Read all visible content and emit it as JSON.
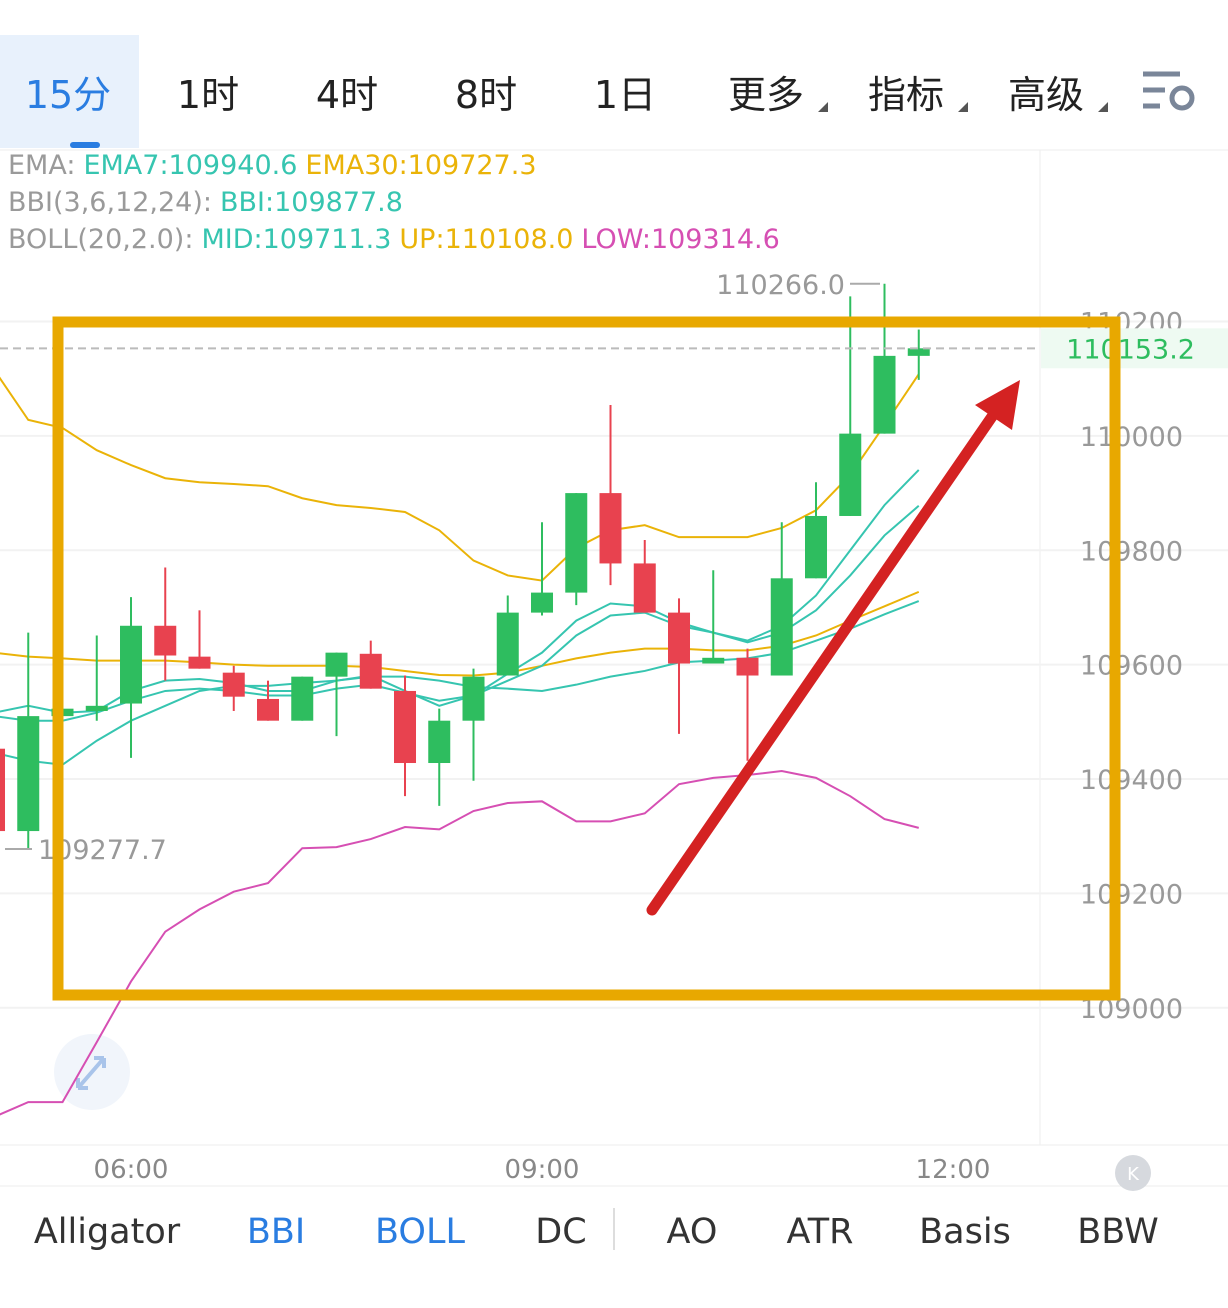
{
  "ui": {
    "tabs": [
      {
        "text": "15分",
        "active": true
      },
      {
        "text": "1时"
      },
      {
        "text": "4时"
      },
      {
        "text": "8时"
      },
      {
        "text": "1日"
      },
      {
        "text": "更多",
        "menu": true
      },
      {
        "text": "指标",
        "menu": true
      },
      {
        "text": "高级",
        "menu": true
      }
    ],
    "indicators": [
      [
        {
          "text": "EMA:",
          "color": "#9a9a9a"
        },
        {
          "text": "EMA7:109940.6",
          "color": "#36c5b0"
        },
        {
          "text": "EMA30:109727.3",
          "color": "#eab308"
        }
      ],
      [
        {
          "text": "BBI(3,6,12,24):",
          "color": "#9a9a9a"
        },
        {
          "text": "BBI:109877.8",
          "color": "#36c5b0"
        }
      ],
      [
        {
          "text": "BOLL(20,2.0):",
          "color": "#9a9a9a"
        },
        {
          "text": "MID:109711.3",
          "color": "#36c5b0"
        },
        {
          "text": "UP:110108.0",
          "color": "#eab308"
        },
        {
          "text": "LOW:109314.6",
          "color": "#d64fb3"
        }
      ]
    ],
    "bottom_tabs": [
      {
        "text": "Alligator",
        "color": "#333"
      },
      {
        "text": "BBI",
        "color": "#2a7de1"
      },
      {
        "text": "BOLL",
        "color": "#2a7de1"
      },
      {
        "text": "DC",
        "color": "#333"
      },
      {
        "text": "AO",
        "color": "#333"
      },
      {
        "text": "ATR",
        "color": "#333"
      },
      {
        "text": "Basis",
        "color": "#333"
      },
      {
        "text": "BBW",
        "color": "#333"
      }
    ]
  },
  "chart_data": {
    "type": "candlestick",
    "open": [
      109453,
      109309,
      109510,
      109519,
      109532,
      109668,
      109614,
      109586,
      109540,
      109502,
      109579,
      109619,
      109554,
      109428,
      109502,
      109581,
      109691,
      109726,
      109900,
      109777,
      109691,
      109602,
      109612,
      109581,
      109751,
      109860,
      110004,
      110140
    ],
    "high": [
      109453,
      109656,
      109523,
      109651,
      109718,
      109770,
      109695,
      109598,
      109572,
      109579,
      109621,
      109642,
      109581,
      109523,
      109593,
      109721,
      109849,
      109900,
      110054,
      109818,
      109716,
      109765,
      109628,
      109849,
      109919,
      110244,
      110266,
      110186
    ],
    "low": [
      109309,
      109277.7,
      109510,
      109502,
      109437,
      109572,
      109593,
      109519,
      109502,
      109502,
      109475,
      109558,
      109370,
      109353,
      109397,
      109581,
      109686,
      109704,
      109739,
      109691,
      109479,
      109602,
      109432,
      109581,
      109751,
      109860,
      110004,
      110098
    ],
    "close": [
      109309,
      109510,
      109523,
      109528,
      109668,
      109616,
      109593,
      109544,
      109502,
      109579,
      109621,
      109558,
      109428,
      109502,
      109579,
      109691,
      109726,
      109900,
      109777,
      109691,
      109602,
      109612,
      109581,
      109751,
      109860,
      110004,
      110140,
      110153.2
    ],
    "up_color": "#2ebd5f",
    "down_color": "#e8424f",
    "lines": [
      {
        "color": "#eab308",
        "values": [
          110116,
          110028,
          110014,
          109975,
          109949,
          109926,
          109919,
          109916,
          109912,
          109891,
          109879,
          109874,
          109867,
          109835,
          109782,
          109756,
          109747,
          109804,
          109835,
          109844,
          109823,
          109823,
          109823,
          109839,
          109870,
          109932,
          110019,
          110108
        ]
      },
      {
        "color": "#d64fb3",
        "values": [
          108809,
          108835,
          108835,
          108940,
          109046,
          109133,
          109172,
          109203,
          109218,
          109279,
          109281,
          109295,
          109316,
          109312,
          109344,
          109358,
          109361,
          109326,
          109326,
          109340,
          109391,
          109402,
          109407,
          109414,
          109402,
          109370,
          109330,
          109314.6
        ]
      },
      {
        "color": "#eab308",
        "values": [
          109621,
          109614,
          109611,
          109607,
          109607,
          109607,
          109604,
          109600,
          109598,
          109598,
          109598,
          109596,
          109589,
          109582,
          109581,
          109586,
          109598,
          109611,
          109621,
          109628,
          109628,
          109625,
          109625,
          109633,
          109651,
          109677,
          109702,
          109727.3
        ]
      },
      {
        "color": "#36c5b0",
        "values": [
          109516,
          109528,
          109516,
          109519,
          109554,
          109572,
          109575,
          109568,
          109554,
          109554,
          109572,
          109581,
          109554,
          109528,
          109546,
          109584,
          109621,
          109677,
          109707,
          109702,
          109674,
          109656,
          109642,
          109668,
          109721,
          109800,
          109879,
          109940.6
        ]
      },
      {
        "color": "#36c5b0",
        "values": [
          109510,
          109502,
          109502,
          109516,
          109537,
          109554,
          109558,
          109554,
          109546,
          109546,
          109558,
          109565,
          109551,
          109537,
          109546,
          109572,
          109598,
          109651,
          109686,
          109691,
          109668,
          109656,
          109639,
          109656,
          109695,
          109756,
          109826,
          109877.8
        ]
      },
      {
        "color": "#36c5b0",
        "values": [
          109446,
          109432,
          109425,
          109467,
          109502,
          109528,
          109554,
          109563,
          109563,
          109568,
          109572,
          109579,
          109579,
          109572,
          109561,
          109558,
          109554,
          109565,
          109579,
          109589,
          109604,
          109607,
          109611,
          109621,
          109642,
          109663,
          109688,
          109711.3
        ]
      }
    ],
    "ylim": [
      108760,
      110500
    ],
    "yticks": [
      109000,
      109200,
      109400,
      109600,
      109800,
      110000,
      110200
    ],
    "xlim": [
      0.175,
      30.54
    ],
    "xticks": [
      {
        "value": 4,
        "label": "06:00"
      },
      {
        "value": 16,
        "label": "09:00"
      },
      {
        "value": 28,
        "label": "12:00"
      }
    ],
    "grid": true,
    "last_price": 110153.2,
    "max_label": {
      "value": 110266,
      "label": "110266.0"
    },
    "min_label": 109277.7
  }
}
